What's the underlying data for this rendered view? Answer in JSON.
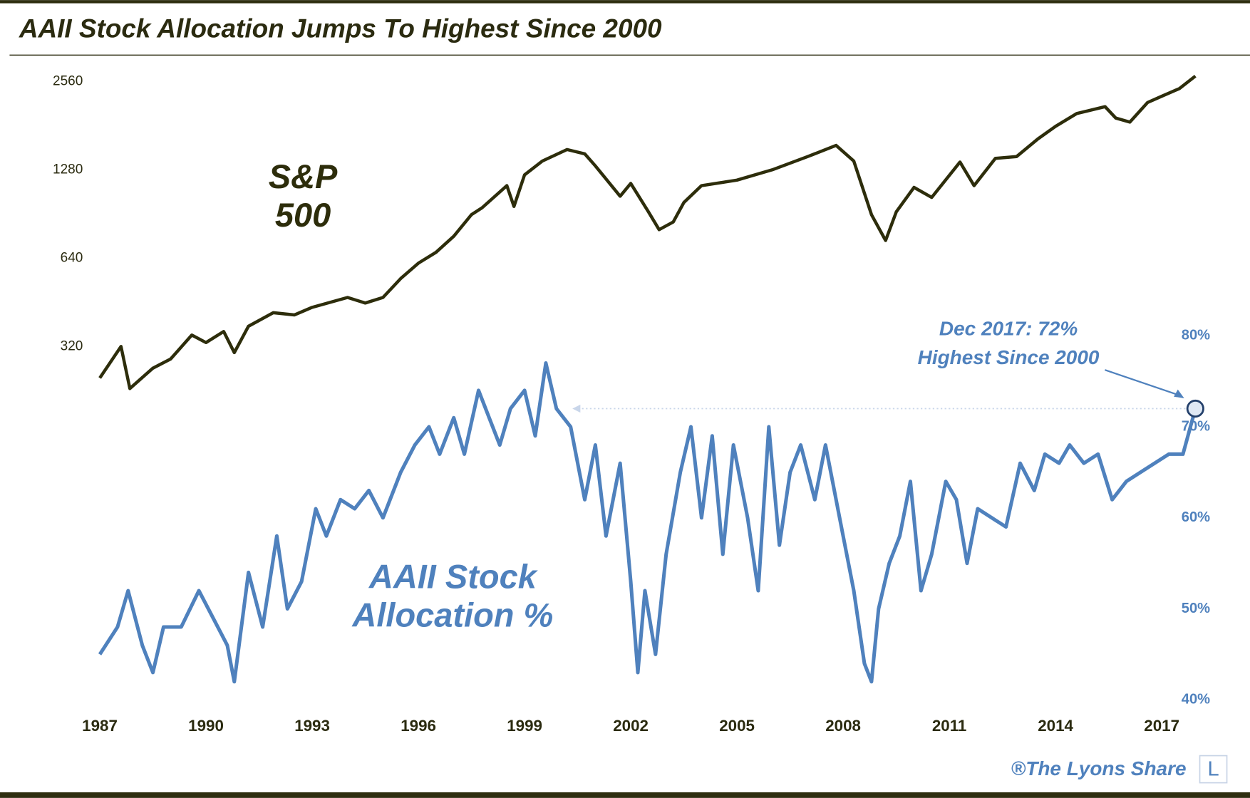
{
  "chart_data": {
    "type": "line",
    "title": "AAII Stock Allocation Jumps To Highest Since 2000",
    "xlim": [
      1986.5,
      2018.3
    ],
    "xticks": [
      1987,
      1990,
      1993,
      1996,
      1999,
      2002,
      2005,
      2008,
      2011,
      2014,
      2017
    ],
    "ylim": [
      20,
      2760
    ],
    "ylog": true,
    "yticks": [
      320,
      640,
      1280,
      2560
    ],
    "y2lim": [
      40,
      109
    ],
    "y2ticks": [
      {
        "value": 40,
        "label": "40%"
      },
      {
        "value": 50,
        "label": "50%"
      },
      {
        "value": 60,
        "label": "60%"
      },
      {
        "value": 70,
        "label": "70%"
      },
      {
        "value": 80,
        "label": "80%"
      }
    ],
    "series": [
      {
        "name": "S&P 500",
        "color": "#2d2d0b",
        "axis": "y",
        "x": [
          1987.0,
          1987.6,
          1987.85,
          1988.5,
          1989.0,
          1989.6,
          1990.0,
          1990.5,
          1990.8,
          1991.2,
          1991.9,
          1992.5,
          1993.0,
          1994.0,
          1994.5,
          1995.0,
          1995.5,
          1996.0,
          1996.5,
          1997.0,
          1997.5,
          1997.8,
          1998.5,
          1998.7,
          1999.0,
          1999.5,
          2000.2,
          2000.7,
          2001.0,
          2001.7,
          2002.0,
          2002.5,
          2002.8,
          2003.2,
          2003.5,
          2004.0,
          2005.0,
          2006.0,
          2007.0,
          2007.8,
          2008.3,
          2008.8,
          2009.2,
          2009.5,
          2010.0,
          2010.5,
          2011.3,
          2011.7,
          2012.3,
          2012.9,
          2013.5,
          2014.0,
          2014.6,
          2015.4,
          2015.7,
          2016.1,
          2016.6,
          2017.0,
          2017.5,
          2017.95
        ],
        "values": [
          250,
          320,
          230,
          270,
          290,
          350,
          330,
          360,
          305,
          375,
          417,
          410,
          435,
          470,
          450,
          470,
          545,
          615,
          670,
          760,
          900,
          950,
          1130,
          960,
          1230,
          1370,
          1500,
          1450,
          1320,
          1040,
          1150,
          920,
          800,
          850,
          990,
          1130,
          1180,
          1280,
          1420,
          1550,
          1370,
          900,
          735,
          920,
          1115,
          1030,
          1360,
          1130,
          1400,
          1420,
          1630,
          1800,
          1990,
          2100,
          1920,
          1860,
          2170,
          2280,
          2420,
          2670
        ]
      },
      {
        "name": "AAII Stock Allocation %",
        "color": "#4f81bd",
        "axis": "y2",
        "x": [
          1987.0,
          1987.5,
          1987.8,
          1988.2,
          1988.5,
          1988.8,
          1989.3,
          1989.8,
          1990.2,
          1990.6,
          1990.8,
          1991.2,
          1991.6,
          1992.0,
          1992.3,
          1992.7,
          1993.1,
          1993.4,
          1993.8,
          1994.2,
          1994.6,
          1995.0,
          1995.5,
          1995.9,
          1996.3,
          1996.6,
          1997.0,
          1997.3,
          1997.7,
          1998.0,
          1998.3,
          1998.6,
          1999.0,
          1999.3,
          1999.6,
          1999.9,
          2000.3,
          2000.7,
          2001.0,
          2001.3,
          2001.7,
          2002.0,
          2002.2,
          2002.4,
          2002.7,
          2003.0,
          2003.4,
          2003.7,
          2004.0,
          2004.3,
          2004.6,
          2004.9,
          2005.3,
          2005.6,
          2005.9,
          2006.2,
          2006.5,
          2006.8,
          2007.2,
          2007.5,
          2007.9,
          2008.3,
          2008.6,
          2008.8,
          2009.0,
          2009.3,
          2009.6,
          2009.9,
          2010.2,
          2010.5,
          2010.9,
          2011.2,
          2011.5,
          2011.8,
          2012.2,
          2012.6,
          2013.0,
          2013.4,
          2013.7,
          2014.1,
          2014.4,
          2014.8,
          2015.2,
          2015.6,
          2016.0,
          2016.4,
          2016.8,
          2017.2,
          2017.6,
          2017.95
        ],
        "values": [
          45,
          48,
          52,
          46,
          43,
          48,
          48,
          52,
          49,
          46,
          42,
          54,
          48,
          58,
          50,
          53,
          61,
          58,
          62,
          61,
          63,
          60,
          65,
          68,
          70,
          67,
          71,
          67,
          74,
          71,
          68,
          72,
          74,
          69,
          77,
          72,
          70,
          62,
          68,
          58,
          66,
          53,
          43,
          52,
          45,
          56,
          65,
          70,
          60,
          69,
          56,
          68,
          60,
          52,
          70,
          57,
          65,
          68,
          62,
          68,
          60,
          52,
          44,
          42,
          50,
          55,
          58,
          64,
          52,
          56,
          64,
          62,
          55,
          61,
          60,
          59,
          66,
          63,
          67,
          66,
          68,
          66,
          67,
          62,
          64,
          65,
          66,
          67,
          67,
          72
        ]
      }
    ],
    "annotation": [
      "Dec 2017: 72%",
      "Highest Since 2000"
    ],
    "source": "®The Lyons Share",
    "logo": "L"
  }
}
